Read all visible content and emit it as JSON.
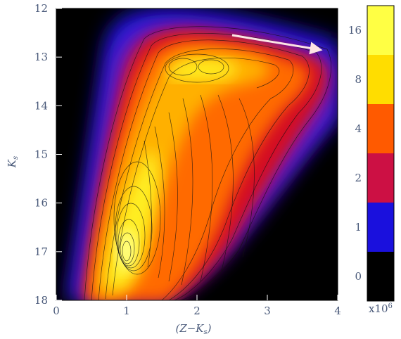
{
  "chart_data": {
    "type": "heatmap",
    "title": "",
    "xlabel": "(Z−K",
    "xlabel_sub": "s",
    "xlabel_close": ")",
    "ylabel": "K",
    "ylabel_sub": "s",
    "xlim": [
      0,
      4
    ],
    "ylim": [
      18,
      12
    ],
    "x_ticks": [
      "0",
      "1",
      "2",
      "3",
      "4"
    ],
    "y_ticks": [
      "12",
      "13",
      "14",
      "15",
      "16",
      "17",
      "18"
    ],
    "colorbar": {
      "labels": [
        "16",
        "8",
        "4",
        "2",
        "1",
        "0"
      ],
      "unit": "x10",
      "unit_exp": "6",
      "colors": [
        "#ffff44",
        "#ffdd00",
        "#ff5a00",
        "#cc1044",
        "#1a10dd",
        "#000000"
      ]
    },
    "density_peaks": [
      {
        "x": 1.0,
        "y": 17.0,
        "level": "16"
      },
      {
        "x": 1.2,
        "y": 16.5,
        "level": "16"
      },
      {
        "x": 1.8,
        "y": 13.2,
        "level": "8"
      },
      {
        "x": 2.25,
        "y": 13.2,
        "level": "8"
      }
    ],
    "annotation_arrow": {
      "from": [
        2.5,
        12.55
      ],
      "to": [
        3.75,
        12.85
      ],
      "color": "#fce4e4"
    }
  }
}
